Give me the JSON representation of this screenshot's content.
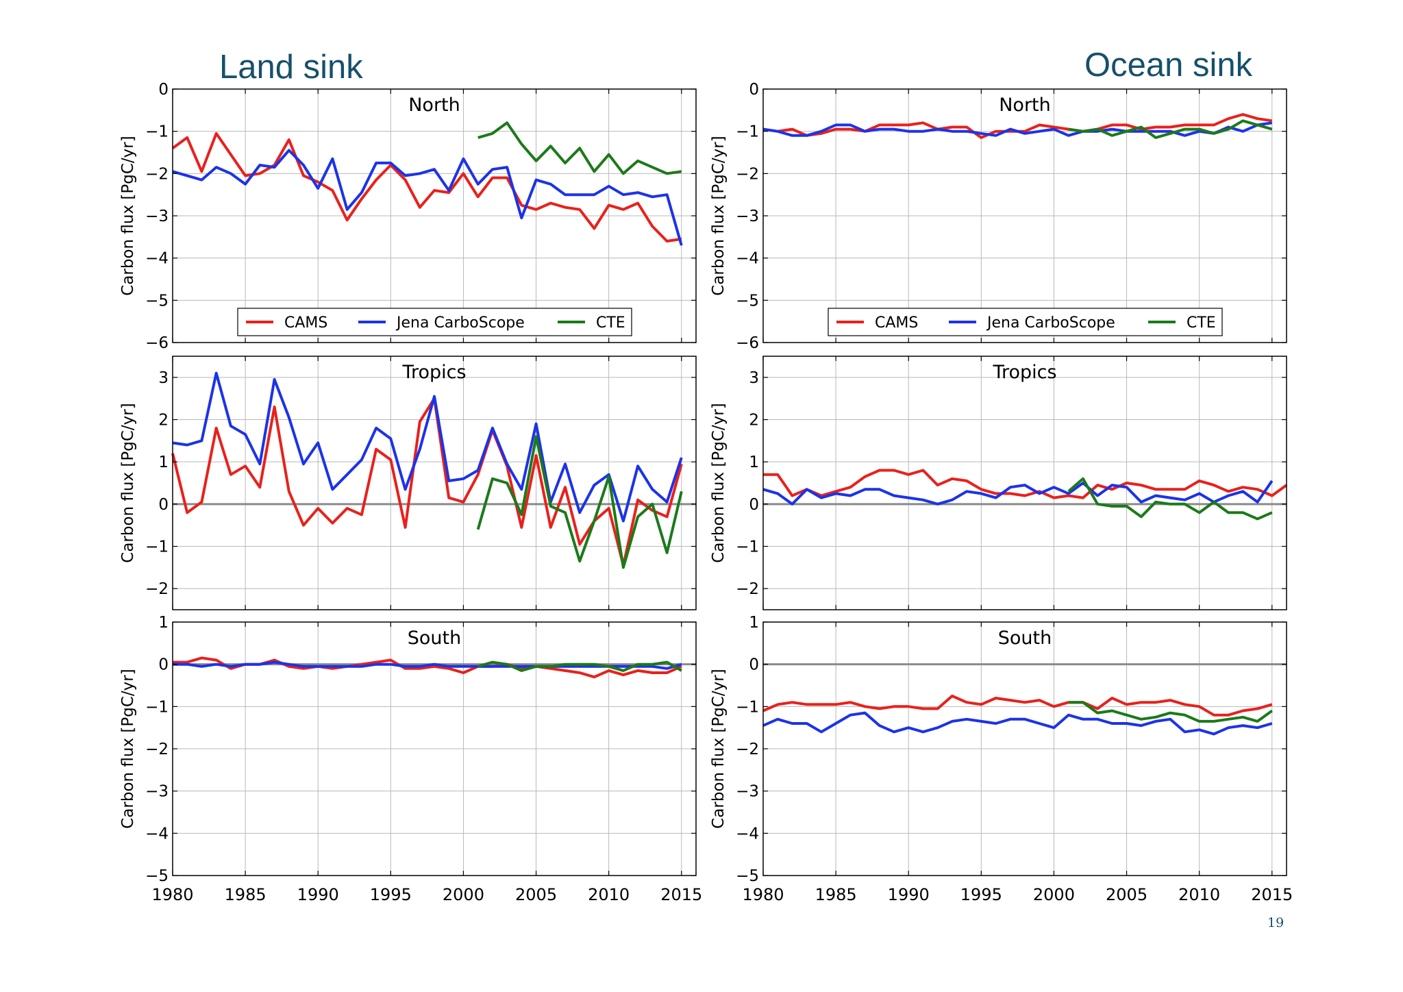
{
  "slide": {
    "left_heading": "Land sink",
    "right_heading": "Ocean sink",
    "page_number": "19"
  },
  "colors": {
    "CAMS": "#e8211c",
    "Jena CarboScope": "#1c33e8",
    "CTE": "#1b7a19",
    "zero_line": "#8a8a8a",
    "grid": "#b8b8b8"
  },
  "chart_data": [
    {
      "type": "line",
      "column": "Land sink",
      "title": "North",
      "ylabel": "Carbon flux [PgC/yr]",
      "xlim": [
        1980,
        2016
      ],
      "ylim": [
        -6,
        0
      ],
      "yticks": [
        0,
        -1,
        -2,
        -3,
        -4,
        -5,
        -6
      ],
      "xticks": [
        1980,
        1985,
        1990,
        1995,
        2000,
        2005,
        2010,
        2015
      ],
      "show_xtick_labels": false,
      "zero_line": false,
      "grid": true,
      "legend": "lower-center",
      "series": [
        {
          "name": "CAMS",
          "x_start": 1980,
          "values": [
            -1.4,
            -1.15,
            -1.95,
            -1.05,
            -1.55,
            -2.05,
            -2.0,
            -1.8,
            -1.2,
            -2.05,
            -2.2,
            -2.4,
            -3.1,
            -2.6,
            -2.15,
            -1.8,
            -2.15,
            -2.8,
            -2.4,
            -2.45,
            -2.0,
            -2.55,
            -2.1,
            -2.1,
            -2.75,
            -2.85,
            -2.7,
            -2.8,
            -2.85,
            -3.3,
            -2.75,
            -2.85,
            -2.7,
            -3.25,
            -3.6,
            -3.55
          ]
        },
        {
          "name": "Jena CarboScope",
          "x_start": 1980,
          "values": [
            -1.95,
            -2.05,
            -2.15,
            -1.85,
            -2.0,
            -2.25,
            -1.8,
            -1.85,
            -1.45,
            -1.8,
            -2.35,
            -1.65,
            -2.85,
            -2.45,
            -1.75,
            -1.75,
            -2.05,
            -2.0,
            -1.9,
            -2.4,
            -1.65,
            -2.25,
            -1.9,
            -1.85,
            -3.05,
            -2.15,
            -2.25,
            -2.5,
            -2.5,
            -2.5,
            -2.3,
            -2.5,
            -2.45,
            -2.55,
            -2.5,
            -3.7
          ]
        },
        {
          "name": "CTE",
          "x_start": 2001,
          "values": [
            -1.15,
            -1.05,
            -0.8,
            -1.3,
            -1.7,
            -1.35,
            -1.75,
            -1.4,
            -1.95,
            -1.55,
            -2.0,
            -1.7,
            -1.85,
            -2.0,
            -1.95
          ]
        }
      ]
    },
    {
      "type": "line",
      "column": "Ocean sink",
      "title": "North",
      "ylabel": "Carbon flux [PgC/yr]",
      "xlim": [
        1980,
        2016
      ],
      "ylim": [
        -6,
        0
      ],
      "yticks": [
        0,
        -1,
        -2,
        -3,
        -4,
        -5,
        -6
      ],
      "xticks": [
        1980,
        1985,
        1990,
        1995,
        2000,
        2005,
        2010,
        2015
      ],
      "show_xtick_labels": false,
      "zero_line": false,
      "grid": true,
      "legend": "lower-center",
      "series": [
        {
          "name": "CAMS",
          "x_start": 1980,
          "values": [
            -0.95,
            -1.0,
            -0.95,
            -1.1,
            -1.05,
            -0.95,
            -0.95,
            -1.0,
            -0.85,
            -0.85,
            -0.85,
            -0.8,
            -0.95,
            -0.9,
            -0.9,
            -1.15,
            -1.0,
            -1.0,
            -1.0,
            -0.85,
            -0.9,
            -0.95,
            -1.0,
            -0.95,
            -0.85,
            -0.85,
            -0.95,
            -0.9,
            -0.9,
            -0.85,
            -0.85,
            -0.85,
            -0.7,
            -0.6,
            -0.7,
            -0.75
          ]
        },
        {
          "name": "Jena CarboScope",
          "x_start": 1980,
          "values": [
            -0.95,
            -1.0,
            -1.1,
            -1.1,
            -1.0,
            -0.85,
            -0.85,
            -1.0,
            -0.95,
            -0.95,
            -1.0,
            -1.0,
            -0.95,
            -1.0,
            -1.0,
            -1.05,
            -1.1,
            -0.95,
            -1.05,
            -1.0,
            -0.95,
            -1.1,
            -1.0,
            -1.0,
            -0.95,
            -1.0,
            -1.0,
            -1.0,
            -1.0,
            -1.1,
            -1.0,
            -1.05,
            -0.9,
            -1.0,
            -0.85,
            -0.8
          ]
        },
        {
          "name": "CTE",
          "x_start": 2001,
          "values": [
            -0.95,
            -1.0,
            -0.95,
            -1.1,
            -1.0,
            -0.9,
            -1.15,
            -1.05,
            -0.95,
            -0.95,
            -1.05,
            -0.95,
            -0.75,
            -0.85,
            -0.95
          ]
        }
      ]
    },
    {
      "type": "line",
      "column": "Land sink",
      "title": "Tropics",
      "ylabel": "Carbon flux [PgC/yr]",
      "xlim": [
        1980,
        2016
      ],
      "ylim": [
        -2.5,
        3.5
      ],
      "yticks": [
        3,
        2,
        1,
        0,
        -1,
        -2
      ],
      "xticks": [
        1980,
        1985,
        1990,
        1995,
        2000,
        2005,
        2010,
        2015
      ],
      "show_xtick_labels": false,
      "zero_line": true,
      "grid": true,
      "series": [
        {
          "name": "CAMS",
          "x_start": 1980,
          "values": [
            1.2,
            -0.2,
            0.05,
            1.8,
            0.7,
            0.9,
            0.4,
            2.3,
            0.3,
            -0.5,
            -0.1,
            -0.45,
            -0.1,
            -0.25,
            1.3,
            1.05,
            -0.55,
            1.95,
            2.5,
            0.15,
            0.05,
            0.7,
            1.75,
            0.9,
            -0.55,
            1.15,
            -0.55,
            0.4,
            -0.95,
            -0.4,
            -0.1,
            -1.45,
            0.1,
            -0.15,
            -0.3,
            0.95
          ]
        },
        {
          "name": "Jena CarboScope",
          "x_start": 1980,
          "values": [
            1.45,
            1.4,
            1.5,
            3.1,
            1.85,
            1.65,
            0.95,
            2.95,
            2.05,
            0.95,
            1.45,
            0.35,
            0.7,
            1.05,
            1.8,
            1.55,
            0.35,
            1.3,
            2.55,
            0.55,
            0.6,
            0.8,
            1.8,
            0.95,
            0.35,
            1.9,
            0.05,
            0.95,
            -0.2,
            0.45,
            0.7,
            -0.4,
            0.9,
            0.35,
            0.05,
            1.1
          ]
        },
        {
          "name": "CTE",
          "x_start": 2001,
          "values": [
            -0.6,
            0.6,
            0.5,
            -0.25,
            1.6,
            -0.05,
            -0.2,
            -1.35,
            -0.4,
            0.65,
            -1.5,
            -0.3,
            0.0,
            -1.15,
            0.3
          ]
        }
      ]
    },
    {
      "type": "line",
      "column": "Ocean sink",
      "title": "Tropics",
      "ylabel": "Carbon flux [PgC/yr]",
      "xlim": [
        1980,
        2016
      ],
      "ylim": [
        -2.5,
        3.5
      ],
      "yticks": [
        3,
        2,
        1,
        0,
        -1,
        -2
      ],
      "xticks": [
        1980,
        1985,
        1990,
        1995,
        2000,
        2005,
        2010,
        2015
      ],
      "show_xtick_labels": false,
      "zero_line": true,
      "grid": true,
      "series": [
        {
          "name": "CAMS",
          "x_start": 1980,
          "values": [
            0.7,
            0.7,
            0.2,
            0.35,
            0.2,
            0.3,
            0.4,
            0.65,
            0.8,
            0.8,
            0.7,
            0.8,
            0.45,
            0.6,
            0.55,
            0.35,
            0.25,
            0.25,
            0.2,
            0.3,
            0.15,
            0.2,
            0.15,
            0.45,
            0.35,
            0.5,
            0.45,
            0.35,
            0.35,
            0.35,
            0.55,
            0.45,
            0.3,
            0.4,
            0.35,
            0.2,
            0.45
          ]
        },
        {
          "name": "Jena CarboScope",
          "x_start": 1980,
          "values": [
            0.35,
            0.25,
            0.0,
            0.35,
            0.15,
            0.25,
            0.2,
            0.35,
            0.35,
            0.2,
            0.15,
            0.1,
            0.0,
            0.1,
            0.3,
            0.25,
            0.15,
            0.4,
            0.45,
            0.25,
            0.4,
            0.25,
            0.5,
            0.2,
            0.45,
            0.4,
            0.05,
            0.2,
            0.15,
            0.1,
            0.25,
            0.05,
            0.2,
            0.3,
            0.05,
            0.55
          ]
        },
        {
          "name": "CTE",
          "x_start": 2001,
          "values": [
            0.3,
            0.6,
            0.0,
            -0.05,
            -0.05,
            -0.3,
            0.05,
            0.0,
            0.0,
            -0.2,
            0.05,
            -0.2,
            -0.2,
            -0.35,
            -0.2
          ]
        }
      ]
    },
    {
      "type": "line",
      "column": "Land sink",
      "title": "South",
      "ylabel": "Carbon flux [PgC/yr]",
      "xlim": [
        1980,
        2016
      ],
      "ylim": [
        -5,
        1
      ],
      "yticks": [
        1,
        0,
        -1,
        -2,
        -3,
        -4,
        -5
      ],
      "xticks": [
        1980,
        1985,
        1990,
        1995,
        2000,
        2005,
        2010,
        2015
      ],
      "show_xtick_labels": true,
      "zero_line": true,
      "grid": true,
      "series": [
        {
          "name": "CAMS",
          "x_start": 1980,
          "values": [
            0.05,
            0.05,
            0.15,
            0.1,
            -0.1,
            0.0,
            0.0,
            0.1,
            -0.05,
            -0.1,
            -0.05,
            -0.1,
            -0.05,
            0.0,
            0.05,
            0.1,
            -0.1,
            -0.1,
            -0.05,
            -0.1,
            -0.2,
            -0.05,
            -0.05,
            0.0,
            -0.1,
            -0.05,
            -0.1,
            -0.15,
            -0.2,
            -0.3,
            -0.15,
            -0.25,
            -0.15,
            -0.2,
            -0.2,
            -0.05
          ]
        },
        {
          "name": "Jena CarboScope",
          "x_start": 1980,
          "values": [
            0.0,
            0.0,
            -0.05,
            0.0,
            -0.05,
            0.0,
            0.0,
            0.05,
            0.0,
            -0.05,
            -0.05,
            -0.05,
            -0.05,
            -0.05,
            0.0,
            0.0,
            -0.05,
            -0.05,
            0.0,
            -0.05,
            -0.05,
            -0.05,
            -0.05,
            -0.05,
            -0.05,
            -0.05,
            -0.05,
            -0.05,
            -0.05,
            -0.05,
            -0.05,
            -0.05,
            -0.05,
            -0.05,
            -0.1,
            0.0
          ]
        },
        {
          "name": "CTE",
          "x_start": 2001,
          "values": [
            -0.05,
            0.05,
            0.0,
            -0.15,
            -0.05,
            -0.05,
            0.0,
            0.0,
            0.0,
            -0.05,
            -0.15,
            0.0,
            0.0,
            0.05,
            -0.15
          ]
        }
      ]
    },
    {
      "type": "line",
      "column": "Ocean sink",
      "title": "South",
      "ylabel": "Carbon flux [PgC/yr]",
      "xlim": [
        1980,
        2016
      ],
      "ylim": [
        -5,
        1
      ],
      "yticks": [
        1,
        0,
        -1,
        -2,
        -3,
        -4,
        -5
      ],
      "xticks": [
        1980,
        1985,
        1990,
        1995,
        2000,
        2005,
        2010,
        2015
      ],
      "show_xtick_labels": true,
      "zero_line": true,
      "grid": true,
      "series": [
        {
          "name": "CAMS",
          "x_start": 1980,
          "values": [
            -1.1,
            -0.95,
            -0.9,
            -0.95,
            -0.95,
            -0.95,
            -0.9,
            -1.0,
            -1.05,
            -1.0,
            -1.0,
            -1.05,
            -1.05,
            -0.75,
            -0.9,
            -0.95,
            -0.8,
            -0.85,
            -0.9,
            -0.85,
            -1.0,
            -0.9,
            -0.9,
            -1.05,
            -0.8,
            -0.95,
            -0.9,
            -0.9,
            -0.85,
            -0.95,
            -1.0,
            -1.2,
            -1.2,
            -1.1,
            -1.05,
            -0.95
          ]
        },
        {
          "name": "Jena CarboScope",
          "x_start": 1980,
          "values": [
            -1.45,
            -1.3,
            -1.4,
            -1.4,
            -1.6,
            -1.4,
            -1.2,
            -1.15,
            -1.45,
            -1.6,
            -1.5,
            -1.6,
            -1.5,
            -1.35,
            -1.3,
            -1.35,
            -1.4,
            -1.3,
            -1.3,
            -1.4,
            -1.5,
            -1.2,
            -1.3,
            -1.3,
            -1.4,
            -1.4,
            -1.45,
            -1.35,
            -1.3,
            -1.6,
            -1.55,
            -1.65,
            -1.5,
            -1.45,
            -1.5,
            -1.4
          ]
        },
        {
          "name": "CTE",
          "x_start": 2001,
          "values": [
            -0.9,
            -0.9,
            -1.15,
            -1.1,
            -1.2,
            -1.3,
            -1.25,
            -1.15,
            -1.2,
            -1.35,
            -1.35,
            -1.3,
            -1.25,
            -1.35,
            -1.1
          ]
        }
      ]
    }
  ]
}
